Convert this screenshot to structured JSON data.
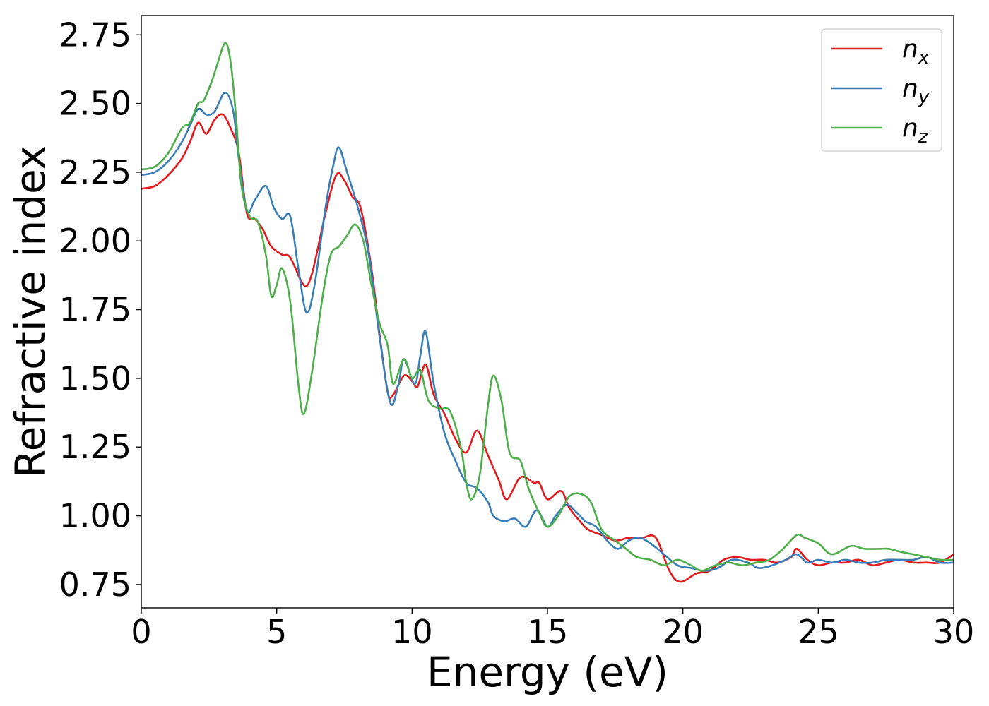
{
  "chart_data": {
    "type": "line",
    "title": "",
    "xlabel": "Energy (eV)",
    "ylabel": "Refractive index",
    "xlim": [
      0,
      30
    ],
    "ylim": [
      0.665,
      2.82
    ],
    "xticks": [
      0,
      5,
      10,
      15,
      20,
      25,
      30
    ],
    "yticks": [
      0.75,
      1.0,
      1.25,
      1.5,
      1.75,
      2.0,
      2.25,
      2.5,
      2.75
    ],
    "xtick_labels": [
      "0",
      "5",
      "10",
      "15",
      "20",
      "25",
      "30"
    ],
    "ytick_labels": [
      "0.75",
      "1.00",
      "1.25",
      "1.50",
      "1.75",
      "2.00",
      "2.25",
      "2.50",
      "2.75"
    ],
    "grid": false,
    "legend_position": "top-right",
    "series": [
      {
        "name": "n",
        "subscript": "x",
        "color": "#e41a1c",
        "points": [
          [
            0,
            2.19
          ],
          [
            0.5,
            2.2
          ],
          [
            1.0,
            2.24
          ],
          [
            1.5,
            2.3
          ],
          [
            1.8,
            2.36
          ],
          [
            2.1,
            2.43
          ],
          [
            2.4,
            2.39
          ],
          [
            2.7,
            2.44
          ],
          [
            3.0,
            2.46
          ],
          [
            3.3,
            2.41
          ],
          [
            3.6,
            2.32
          ],
          [
            3.9,
            2.1
          ],
          [
            4.2,
            2.08
          ],
          [
            4.5,
            2.04
          ],
          [
            4.8,
            1.98
          ],
          [
            5.2,
            1.95
          ],
          [
            5.5,
            1.94
          ],
          [
            6.0,
            1.84
          ],
          [
            6.3,
            1.88
          ],
          [
            6.8,
            2.1
          ],
          [
            7.2,
            2.24
          ],
          [
            7.5,
            2.22
          ],
          [
            7.8,
            2.16
          ],
          [
            8.1,
            2.12
          ],
          [
            8.5,
            1.9
          ],
          [
            8.8,
            1.66
          ],
          [
            9.1,
            1.45
          ],
          [
            9.3,
            1.44
          ],
          [
            9.7,
            1.51
          ],
          [
            10.0,
            1.49
          ],
          [
            10.2,
            1.47
          ],
          [
            10.5,
            1.55
          ],
          [
            10.8,
            1.44
          ],
          [
            11.2,
            1.37
          ],
          [
            11.6,
            1.28
          ],
          [
            12.0,
            1.23
          ],
          [
            12.4,
            1.31
          ],
          [
            12.8,
            1.22
          ],
          [
            13.2,
            1.13
          ],
          [
            13.5,
            1.06
          ],
          [
            14.0,
            1.14
          ],
          [
            14.5,
            1.12
          ],
          [
            14.7,
            1.12
          ],
          [
            15.0,
            1.06
          ],
          [
            15.5,
            1.09
          ],
          [
            15.8,
            1.03
          ],
          [
            16.2,
            0.98
          ],
          [
            16.5,
            0.95
          ],
          [
            17.0,
            0.93
          ],
          [
            17.5,
            0.91
          ],
          [
            18.0,
            0.92
          ],
          [
            18.5,
            0.92
          ],
          [
            19.0,
            0.92
          ],
          [
            19.5,
            0.8
          ],
          [
            19.9,
            0.76
          ],
          [
            20.5,
            0.79
          ],
          [
            21.0,
            0.8
          ],
          [
            21.5,
            0.84
          ],
          [
            22.0,
            0.85
          ],
          [
            22.5,
            0.84
          ],
          [
            23.0,
            0.84
          ],
          [
            23.5,
            0.83
          ],
          [
            24.0,
            0.85
          ],
          [
            24.2,
            0.88
          ],
          [
            24.6,
            0.84
          ],
          [
            25.0,
            0.82
          ],
          [
            25.5,
            0.83
          ],
          [
            26.0,
            0.83
          ],
          [
            26.5,
            0.84
          ],
          [
            27.0,
            0.82
          ],
          [
            27.5,
            0.83
          ],
          [
            28.0,
            0.84
          ],
          [
            28.5,
            0.83
          ],
          [
            29.0,
            0.83
          ],
          [
            29.5,
            0.83
          ],
          [
            30.0,
            0.86
          ]
        ]
      },
      {
        "name": "n",
        "subscript": "y",
        "color": "#377eb8",
        "points": [
          [
            0,
            2.24
          ],
          [
            0.5,
            2.25
          ],
          [
            1.0,
            2.29
          ],
          [
            1.5,
            2.36
          ],
          [
            1.8,
            2.42
          ],
          [
            2.1,
            2.48
          ],
          [
            2.4,
            2.46
          ],
          [
            2.7,
            2.47
          ],
          [
            3.1,
            2.54
          ],
          [
            3.4,
            2.47
          ],
          [
            3.6,
            2.3
          ],
          [
            3.9,
            2.11
          ],
          [
            4.2,
            2.15
          ],
          [
            4.6,
            2.2
          ],
          [
            4.9,
            2.12
          ],
          [
            5.2,
            2.08
          ],
          [
            5.5,
            2.09
          ],
          [
            5.8,
            1.9
          ],
          [
            6.1,
            1.74
          ],
          [
            6.4,
            1.84
          ],
          [
            6.8,
            2.12
          ],
          [
            7.1,
            2.28
          ],
          [
            7.3,
            2.34
          ],
          [
            7.6,
            2.25
          ],
          [
            8.0,
            2.12
          ],
          [
            8.4,
            1.95
          ],
          [
            8.8,
            1.65
          ],
          [
            9.2,
            1.41
          ],
          [
            9.5,
            1.48
          ],
          [
            9.7,
            1.57
          ],
          [
            10.1,
            1.48
          ],
          [
            10.3,
            1.58
          ],
          [
            10.5,
            1.67
          ],
          [
            10.8,
            1.48
          ],
          [
            11.2,
            1.3
          ],
          [
            11.6,
            1.2
          ],
          [
            12.0,
            1.12
          ],
          [
            12.4,
            1.1
          ],
          [
            12.8,
            1.05
          ],
          [
            13.0,
            1.0
          ],
          [
            13.4,
            0.98
          ],
          [
            13.8,
            0.99
          ],
          [
            14.2,
            0.96
          ],
          [
            14.6,
            1.02
          ],
          [
            15.0,
            0.96
          ],
          [
            15.3,
            1.0
          ],
          [
            15.7,
            1.04
          ],
          [
            16.0,
            1.02
          ],
          [
            16.4,
            0.98
          ],
          [
            16.8,
            0.96
          ],
          [
            17.2,
            0.91
          ],
          [
            17.6,
            0.88
          ],
          [
            18.0,
            0.91
          ],
          [
            18.4,
            0.92
          ],
          [
            18.8,
            0.9
          ],
          [
            19.3,
            0.86
          ],
          [
            19.8,
            0.82
          ],
          [
            20.3,
            0.81
          ],
          [
            20.8,
            0.8
          ],
          [
            21.3,
            0.81
          ],
          [
            21.8,
            0.84
          ],
          [
            22.4,
            0.83
          ],
          [
            22.8,
            0.81
          ],
          [
            23.3,
            0.82
          ],
          [
            23.8,
            0.84
          ],
          [
            24.2,
            0.86
          ],
          [
            24.6,
            0.83
          ],
          [
            25.0,
            0.84
          ],
          [
            25.5,
            0.83
          ],
          [
            26.0,
            0.84
          ],
          [
            26.5,
            0.83
          ],
          [
            27.0,
            0.83
          ],
          [
            27.5,
            0.84
          ],
          [
            28.0,
            0.84
          ],
          [
            28.5,
            0.84
          ],
          [
            29.0,
            0.85
          ],
          [
            29.5,
            0.83
          ],
          [
            30.0,
            0.83
          ]
        ]
      },
      {
        "name": "n",
        "subscript": "z",
        "color": "#4daf4a",
        "points": [
          [
            0,
            2.26
          ],
          [
            0.5,
            2.27
          ],
          [
            1.0,
            2.32
          ],
          [
            1.5,
            2.41
          ],
          [
            1.8,
            2.43
          ],
          [
            2.1,
            2.5
          ],
          [
            2.3,
            2.51
          ],
          [
            2.6,
            2.58
          ],
          [
            2.8,
            2.64
          ],
          [
            3.1,
            2.72
          ],
          [
            3.3,
            2.65
          ],
          [
            3.5,
            2.45
          ],
          [
            3.7,
            2.2
          ],
          [
            4.0,
            2.09
          ],
          [
            4.3,
            2.07
          ],
          [
            4.6,
            1.95
          ],
          [
            4.8,
            1.8
          ],
          [
            5.0,
            1.84
          ],
          [
            5.2,
            1.9
          ],
          [
            5.5,
            1.78
          ],
          [
            5.8,
            1.48
          ],
          [
            6.0,
            1.37
          ],
          [
            6.3,
            1.52
          ],
          [
            6.7,
            1.8
          ],
          [
            7.0,
            1.95
          ],
          [
            7.3,
            1.98
          ],
          [
            7.6,
            2.02
          ],
          [
            7.9,
            2.06
          ],
          [
            8.2,
            2.0
          ],
          [
            8.5,
            1.84
          ],
          [
            8.8,
            1.7
          ],
          [
            9.1,
            1.62
          ],
          [
            9.3,
            1.48
          ],
          [
            9.7,
            1.57
          ],
          [
            10.0,
            1.5
          ],
          [
            10.3,
            1.53
          ],
          [
            10.6,
            1.42
          ],
          [
            11.0,
            1.39
          ],
          [
            11.4,
            1.38
          ],
          [
            11.8,
            1.25
          ],
          [
            12.0,
            1.12
          ],
          [
            12.2,
            1.06
          ],
          [
            12.5,
            1.15
          ],
          [
            12.8,
            1.4
          ],
          [
            13.0,
            1.51
          ],
          [
            13.3,
            1.42
          ],
          [
            13.6,
            1.23
          ],
          [
            14.0,
            1.2
          ],
          [
            14.3,
            1.1
          ],
          [
            14.7,
            1.01
          ],
          [
            15.0,
            0.96
          ],
          [
            15.4,
            1.0
          ],
          [
            15.8,
            1.07
          ],
          [
            16.2,
            1.08
          ],
          [
            16.6,
            1.05
          ],
          [
            17.0,
            0.95
          ],
          [
            17.5,
            0.91
          ],
          [
            17.9,
            0.88
          ],
          [
            18.3,
            0.85
          ],
          [
            18.8,
            0.84
          ],
          [
            19.3,
            0.82
          ],
          [
            19.8,
            0.84
          ],
          [
            20.3,
            0.82
          ],
          [
            20.7,
            0.8
          ],
          [
            21.2,
            0.82
          ],
          [
            21.7,
            0.83
          ],
          [
            22.2,
            0.82
          ],
          [
            22.7,
            0.83
          ],
          [
            23.2,
            0.84
          ],
          [
            23.7,
            0.88
          ],
          [
            24.2,
            0.93
          ],
          [
            24.5,
            0.92
          ],
          [
            25.0,
            0.9
          ],
          [
            25.5,
            0.86
          ],
          [
            26.2,
            0.89
          ],
          [
            26.7,
            0.88
          ],
          [
            27.3,
            0.88
          ],
          [
            27.6,
            0.88
          ],
          [
            28.0,
            0.87
          ],
          [
            28.5,
            0.86
          ],
          [
            29.0,
            0.85
          ],
          [
            29.5,
            0.84
          ],
          [
            30.0,
            0.84
          ]
        ]
      }
    ]
  }
}
